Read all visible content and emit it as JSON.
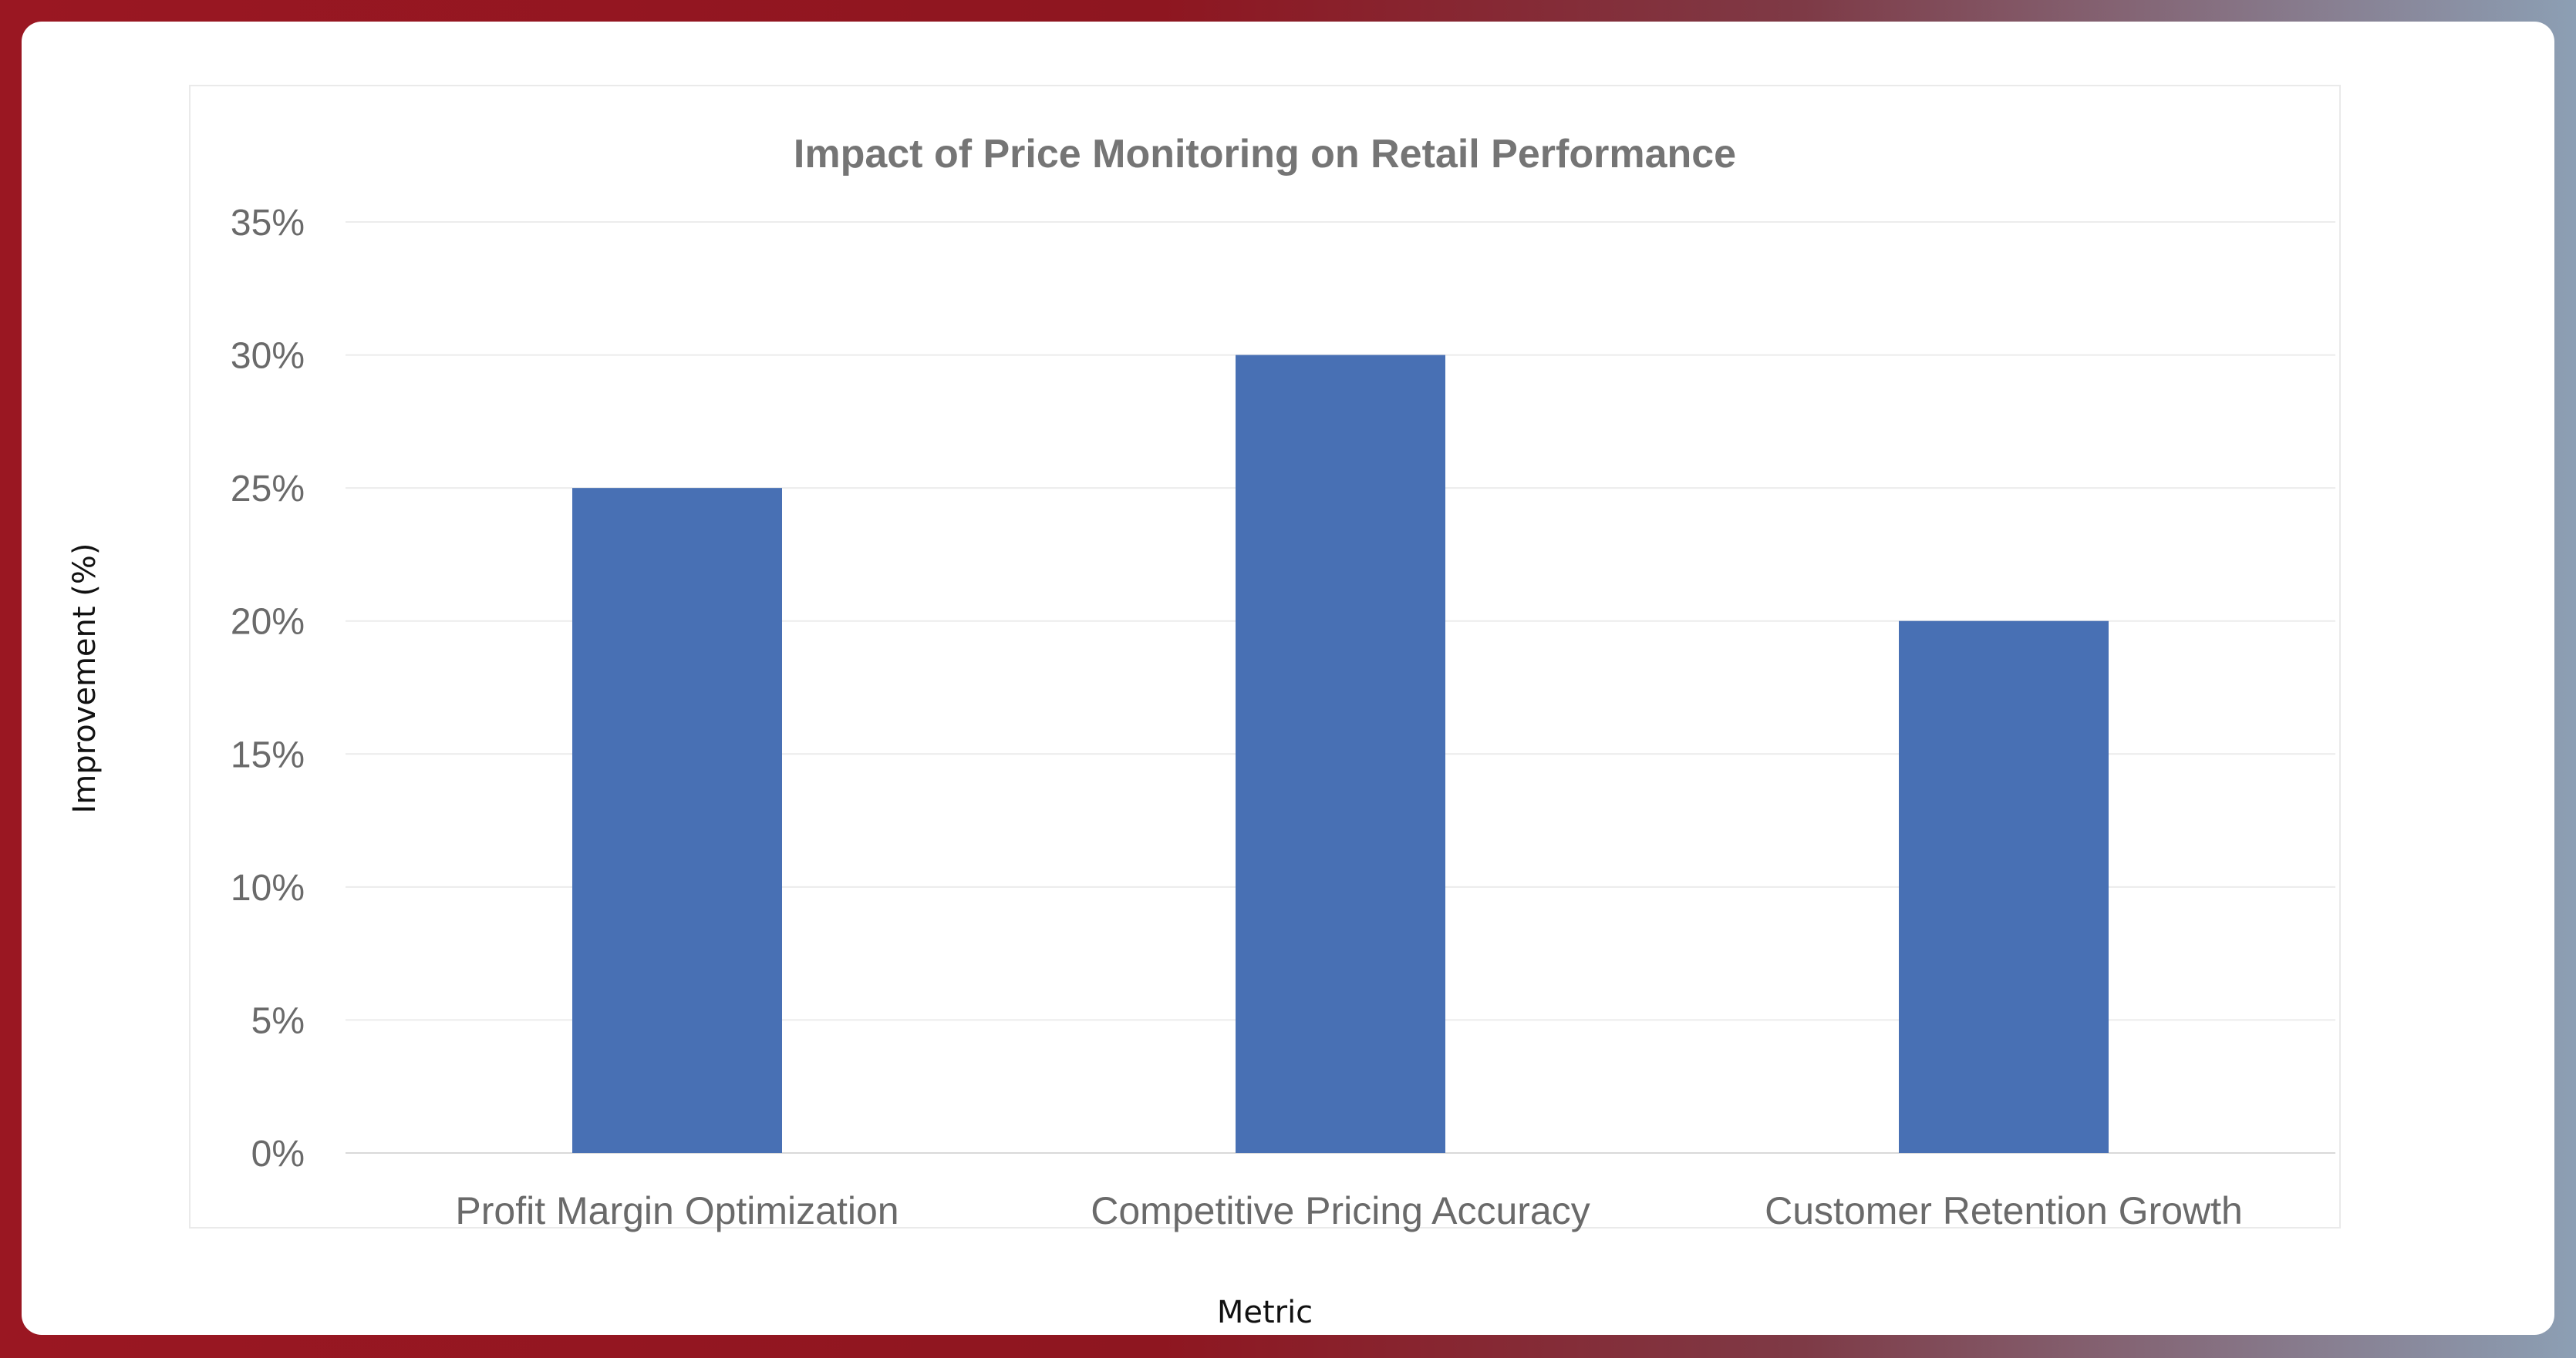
{
  "chart_data": {
    "type": "bar",
    "title": "Impact of Price Monitoring on Retail Performance",
    "xlabel": "Metric",
    "ylabel": "Improvement (%)",
    "categories": [
      "Profit Margin Optimization",
      "Competitive Pricing Accuracy",
      "Customer Retention Growth"
    ],
    "values": [
      25,
      30,
      20
    ],
    "ylim": [
      0,
      35
    ],
    "yticks": [
      "0%",
      "5%",
      "10%",
      "15%",
      "20%",
      "25%",
      "30%",
      "35%"
    ],
    "ytick_values": [
      0,
      5,
      10,
      15,
      20,
      25,
      30,
      35
    ],
    "grid": true,
    "legend": "none",
    "bar_color": "#4870b4"
  }
}
